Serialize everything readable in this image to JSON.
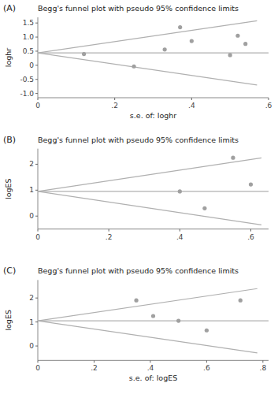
{
  "chart_data": [
    {
      "type": "scatter",
      "title": "Begg's funnel plot with pseudo 95% confidence limits",
      "annotations": [
        "(A)"
      ],
      "y_label": "loghr",
      "x_label": "s.e. of: loghr",
      "xlim": [
        0,
        0.6
      ],
      "ylim": [
        -1.15,
        1.7
      ],
      "yticks": [
        {
          "value": -1.0,
          "label": "-1.0"
        },
        -0.5,
        0,
        0.5,
        {
          "value": 1.0,
          "label": "1.0"
        },
        1.5
      ],
      "xticks": [
        0,
        {
          "value": 0.2,
          "label": ".2"
        },
        {
          "value": 0.4,
          "label": ".4"
        },
        {
          "value": 0.6,
          "label": ".6"
        }
      ],
      "series": [
        {
          "type": "line",
          "color": "#b0b0b0",
          "x": [
            0,
            0.57
          ],
          "values": [
            0.44,
            1.58
          ]
        },
        {
          "type": "line",
          "color": "#b0b0b0",
          "x": [
            0,
            0.57
          ],
          "values": [
            0.44,
            -0.7
          ]
        },
        {
          "type": "line",
          "color": "#b0b0b0",
          "x": [
            0,
            0.6
          ],
          "values": [
            0.44,
            0.44
          ]
        },
        {
          "type": "scatter",
          "color": "#a0a0a0",
          "x": [
            0.12,
            0.25,
            0.33,
            0.37,
            0.4,
            0.5,
            0.52,
            0.54
          ],
          "values": [
            0.4,
            -0.04,
            0.56,
            1.35,
            0.86,
            0.36,
            1.05,
            0.76
          ]
        }
      ]
    },
    {
      "type": "scatter",
      "title": "Begg's funnel plot with pseudo 95% confidence limits",
      "annotations": [
        "(B)"
      ],
      "y_label": "logES",
      "xlim": [
        0,
        0.65
      ],
      "ylim": [
        -0.5,
        2.6
      ],
      "yticks": [
        0,
        1,
        2
      ],
      "xticks": [
        0,
        {
          "value": 0.2,
          "label": ".2"
        },
        {
          "value": 0.4,
          "label": ".4"
        },
        {
          "value": 0.6,
          "label": ".6"
        }
      ],
      "series": [
        {
          "type": "line",
          "color": "#b0b0b0",
          "x": [
            0,
            0.63
          ],
          "values": [
            0.95,
            2.2415
          ]
        },
        {
          "type": "line",
          "color": "#b0b0b0",
          "x": [
            0,
            0.63
          ],
          "values": [
            0.95,
            -0.3415
          ]
        },
        {
          "type": "line",
          "color": "#b0b0b0",
          "x": [
            0,
            0.65
          ],
          "values": [
            0.95,
            0.95
          ]
        },
        {
          "type": "scatter",
          "color": "#a0a0a0",
          "x": [
            0.4,
            0.47,
            0.55,
            0.6
          ],
          "values": [
            0.95,
            0.3,
            2.25,
            1.22
          ]
        }
      ]
    },
    {
      "type": "scatter",
      "title": "Begg's funnel plot with pseudo 95% confidence limits",
      "annotations": [
        "(C)"
      ],
      "y_label": "logES",
      "x_label": "s.e. of: logES",
      "xlim": [
        0,
        0.82
      ],
      "ylim": [
        -0.6,
        2.75
      ],
      "yticks": [
        0,
        1,
        2
      ],
      "xticks": [
        0,
        {
          "value": 0.2,
          "label": ".2"
        },
        {
          "value": 0.4,
          "label": ".4"
        },
        {
          "value": 0.6,
          "label": ".6"
        },
        {
          "value": 0.8,
          "label": ".8"
        }
      ],
      "series": [
        {
          "type": "line",
          "color": "#b0b0b0",
          "x": [
            0,
            0.78
          ],
          "values": [
            1.05,
            2.3916
          ]
        },
        {
          "type": "line",
          "color": "#b0b0b0",
          "x": [
            0,
            0.78
          ],
          "values": [
            1.05,
            -0.2916
          ]
        },
        {
          "type": "line",
          "color": "#b0b0b0",
          "x": [
            0,
            0.82
          ],
          "values": [
            1.05,
            1.05
          ]
        },
        {
          "type": "scatter",
          "color": "#a0a0a0",
          "x": [
            0.35,
            0.41,
            0.5,
            0.6,
            0.72
          ],
          "values": [
            1.9,
            1.25,
            1.05,
            0.65,
            1.9
          ]
        }
      ]
    }
  ]
}
